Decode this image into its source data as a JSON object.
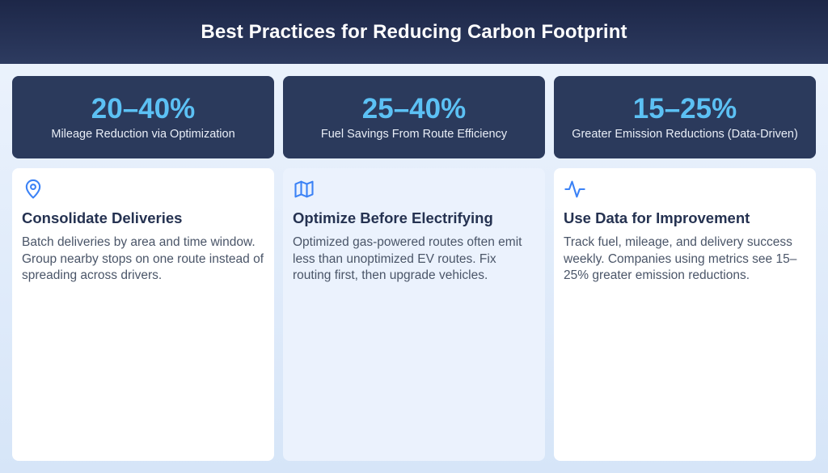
{
  "header": {
    "title": "Best Practices for Reducing Carbon Footprint"
  },
  "stats": [
    {
      "value": "20–40%",
      "label": "Mileage Reduction via Optimization"
    },
    {
      "value": "25–40%",
      "label": "Fuel Savings From Route Efficiency"
    },
    {
      "value": "15–25%",
      "label": "Greater Emission Reductions (Data-Driven)"
    }
  ],
  "cards": [
    {
      "icon": "map-pin-icon",
      "title": "Consolidate Deliveries",
      "text": "Batch deliveries by area and time window. Group nearby stops on one route instead of spreading across drivers."
    },
    {
      "icon": "map-icon",
      "title": "Optimize Before Electrifying",
      "text": "Optimized gas-powered routes often emit less than unoptimized EV routes. Fix routing first, then upgrade vehicles."
    },
    {
      "icon": "activity-icon",
      "title": "Use Data for Improvement",
      "text": "Track fuel, mileage, and delivery success weekly. Companies using metrics see 15–25% greater emission reductions."
    }
  ],
  "colors": {
    "header_bg": "#1d2748",
    "stat_bg": "#2b3a5c",
    "stat_value": "#5cc1f4",
    "icon_accent": "#3b82f6"
  }
}
